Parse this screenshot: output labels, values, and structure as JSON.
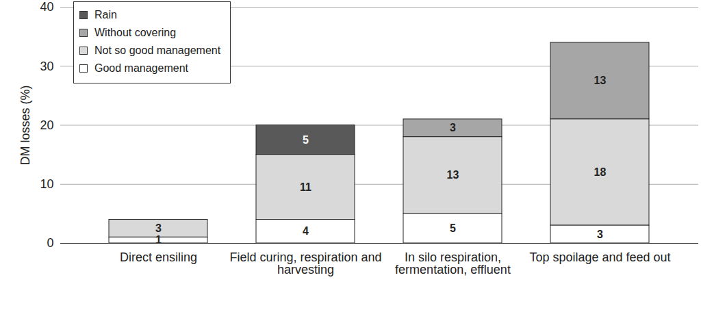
{
  "chart_data": {
    "type": "bar",
    "stacked": true,
    "data_labels": true,
    "grid": true,
    "legend": "top-left",
    "y_label": "DM losses (%)",
    "categories": [
      "Direct ensiling",
      "Field curing, respiration and harvesting",
      "In silo respiration, fermentation, effluent",
      "Top spoilage and feed out"
    ],
    "series": [
      {
        "name": "Rain",
        "color": "#595959",
        "values": [
          null,
          5,
          null,
          null
        ]
      },
      {
        "name": "Without covering",
        "color": "#a6a6a6",
        "values": [
          null,
          null,
          3,
          13
        ]
      },
      {
        "name": "Not so good management",
        "color": "#d9d9d9",
        "values": [
          3,
          11,
          13,
          18
        ]
      },
      {
        "name": "Good management",
        "color": "#ffffff",
        "values": [
          1,
          4,
          5,
          3
        ]
      }
    ],
    "ylim": [
      0,
      40
    ],
    "yticks": [
      0,
      10,
      20,
      30,
      40
    ]
  }
}
